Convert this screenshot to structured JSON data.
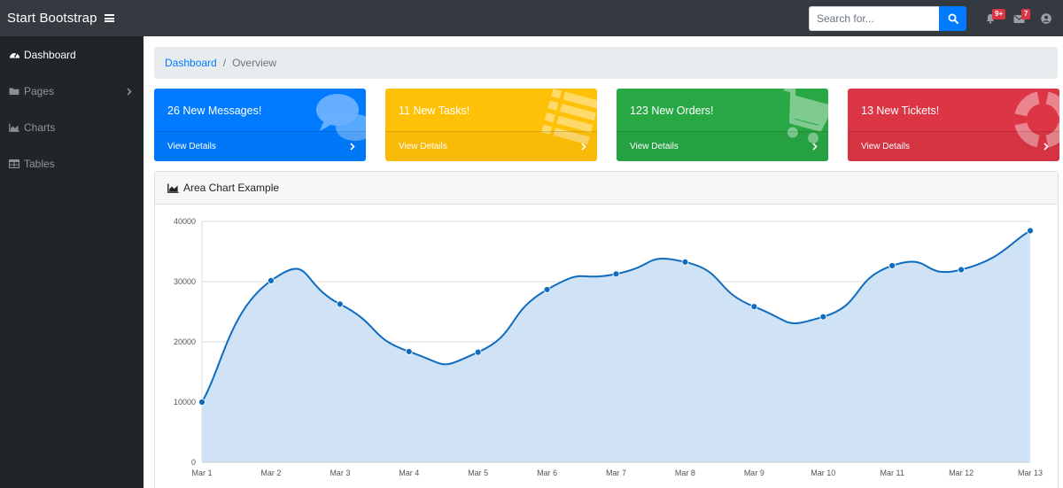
{
  "navbar": {
    "brand": "Start Bootstrap",
    "search_placeholder": "Search for...",
    "alerts_badge": "9+",
    "messages_badge": "7"
  },
  "sidebar": {
    "items": [
      {
        "label": "Dashboard",
        "icon": "tachometer-icon",
        "active": true
      },
      {
        "label": "Pages",
        "icon": "folder-icon",
        "active": false
      },
      {
        "label": "Charts",
        "icon": "area-chart-icon",
        "active": false
      },
      {
        "label": "Tables",
        "icon": "table-icon",
        "active": false
      }
    ]
  },
  "breadcrumb": {
    "link": "Dashboard",
    "current": "Overview"
  },
  "cards": [
    {
      "title": "26 New Messages!",
      "footer": "View Details",
      "color": "#007bff",
      "icon": "comments-icon"
    },
    {
      "title": "11 New Tasks!",
      "footer": "View Details",
      "color": "#ffc107",
      "icon": "list-icon"
    },
    {
      "title": "123 New Orders!",
      "footer": "View Details",
      "color": "#28a745",
      "icon": "shopping-cart-icon"
    },
    {
      "title": "13 New Tickets!",
      "footer": "View Details",
      "color": "#dc3545",
      "icon": "life-ring-icon"
    }
  ],
  "chart": {
    "header": "Area Chart Example"
  },
  "chart_data": {
    "type": "area",
    "categories": [
      "Mar 1",
      "Mar 2",
      "Mar 3",
      "Mar 4",
      "Mar 5",
      "Mar 6",
      "Mar 7",
      "Mar 8",
      "Mar 9",
      "Mar 10",
      "Mar 11",
      "Mar 12",
      "Mar 13"
    ],
    "values": [
      10000,
      30162,
      26263,
      18394,
      18287,
      28682,
      31274,
      33259,
      25849,
      24159,
      32651,
      31984,
      38451
    ],
    "ylim": [
      0,
      40000
    ],
    "yticks": [
      0,
      10000,
      20000,
      30000,
      40000
    ],
    "grid": true,
    "line_color": "#0f6cbf",
    "fill_color": "#cfe2f6"
  }
}
